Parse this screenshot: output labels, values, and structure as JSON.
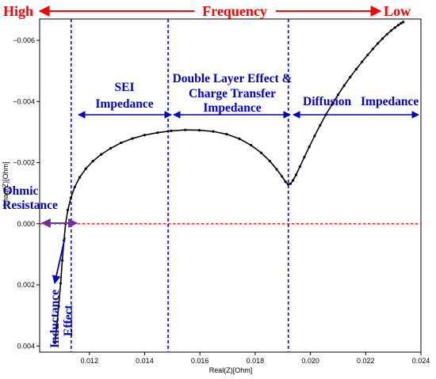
{
  "chart_data": {
    "type": "line",
    "title": "",
    "xlabel": "Real(Z)[Ohm]",
    "ylabel": "−Imag(Z)[Ohm]",
    "xlim": [
      0.0102,
      0.024
    ],
    "ylim": [
      0.0042,
      -0.0067
    ],
    "y_inverted": true,
    "grid": false,
    "x_ticks": [
      {
        "v": 0.012,
        "label": "0.012"
      },
      {
        "v": 0.014,
        "label": "0.014"
      },
      {
        "v": 0.016,
        "label": "0.016"
      },
      {
        "v": 0.018,
        "label": "0.018"
      },
      {
        "v": 0.02,
        "label": "0.020"
      },
      {
        "v": 0.022,
        "label": "0.022"
      },
      {
        "v": 0.024,
        "label": "0.024"
      }
    ],
    "y_ticks": [
      {
        "v": -0.006,
        "label": "−0.006"
      },
      {
        "v": -0.004,
        "label": "−0.004"
      },
      {
        "v": -0.002,
        "label": "−0.002"
      },
      {
        "v": 0.0,
        "label": "0.000"
      },
      {
        "v": 0.002,
        "label": "0.002"
      },
      {
        "v": 0.004,
        "label": "0.004"
      }
    ],
    "series": [
      {
        "color": "#000000",
        "x": [
          0.01075,
          0.01082,
          0.01089,
          0.01096,
          0.01102,
          0.01108,
          0.01114,
          0.01122,
          0.01133,
          0.01147,
          0.01165,
          0.01187,
          0.01213,
          0.01243,
          0.01277,
          0.01315,
          0.01356,
          0.014,
          0.01447,
          0.01496,
          0.01547,
          0.01598,
          0.01648,
          0.01697,
          0.01743,
          0.01785,
          0.01822,
          0.01853,
          0.01878,
          0.01897,
          0.0191,
          0.0192,
          0.01928,
          0.01937,
          0.01948,
          0.01962,
          0.01978,
          0.01996,
          0.02015,
          0.02035,
          0.02056,
          0.02078,
          0.021,
          0.02122,
          0.02144,
          0.02166,
          0.02187,
          0.02207,
          0.02226,
          0.02244,
          0.02261,
          0.02277,
          0.02292,
          0.02306,
          0.02318,
          0.02328,
          0.02336
        ],
        "y": [
          0.0039,
          0.00335,
          0.0027,
          0.00195,
          0.0012,
          0.00055,
          0.0,
          -0.00045,
          -0.00085,
          -0.0012,
          -0.00152,
          -0.0018,
          -0.00205,
          -0.00227,
          -0.00247,
          -0.00265,
          -0.00279,
          -0.0029,
          -0.00298,
          -0.00304,
          -0.00307,
          -0.00306,
          -0.00302,
          -0.00293,
          -0.00278,
          -0.00257,
          -0.00232,
          -0.00205,
          -0.00178,
          -0.00155,
          -0.00137,
          -0.00129,
          -0.00131,
          -0.00142,
          -0.0016,
          -0.00187,
          -0.00218,
          -0.00252,
          -0.00287,
          -0.00322,
          -0.00357,
          -0.0039,
          -0.00422,
          -0.00452,
          -0.0048,
          -0.00506,
          -0.0053,
          -0.00552,
          -0.00572,
          -0.0059,
          -0.00606,
          -0.0062,
          -0.00632,
          -0.00642,
          -0.0065,
          -0.00656,
          -0.0066
        ]
      }
    ],
    "dividers_x": [
      0.01134,
      0.01485,
      0.0192
    ],
    "zero_line_y": 0.0
  },
  "annotations": {
    "high": "High",
    "frequency": "Frequency",
    "low": "Low",
    "sei_line1": "SEI",
    "sei_line2": "Impedance",
    "dl_line1": "Double Layer Effect &",
    "dl_line2": "Charge Transfer",
    "dl_line3": "Impedance",
    "diffusion": "Diffusion",
    "diffusion_impedance": "Impedance",
    "ohmic_line1": "Ohmic",
    "ohmic_line2": "Resistance",
    "inductance_line1": "Inductance",
    "inductance_line2": "Effect"
  },
  "colors": {
    "frequency": "#ff0000",
    "regions": "#0000cc",
    "ohmic_arrow": "#7030a0"
  }
}
